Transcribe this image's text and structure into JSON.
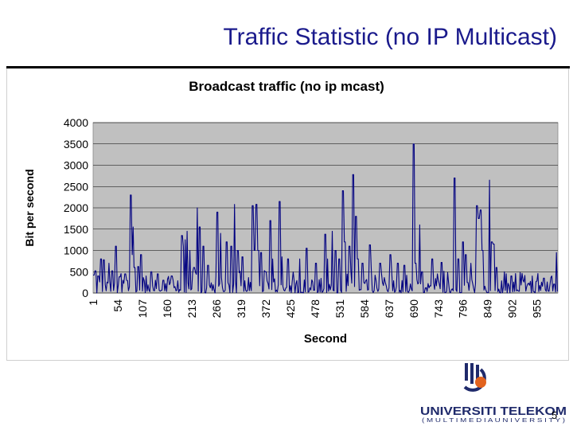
{
  "slide": {
    "title": "Traffic Statistic (no IP Multicast)",
    "page_number": "5"
  },
  "logo": {
    "name": "UNIVERSITI TELEKOM",
    "subtitle": "( M U L T I M E D I A   U N I V E R S I T Y )",
    "colors": {
      "navy": "#1f2a6b",
      "orange": "#e2631e"
    }
  },
  "chart_data": {
    "type": "line",
    "title": "Broadcast traffic (no ip mcast)",
    "xlabel": "Second",
    "ylabel": "Bit per second",
    "ylim": [
      0,
      4000
    ],
    "yticks": [
      0,
      500,
      1000,
      1500,
      2000,
      2500,
      3000,
      3500,
      4000
    ],
    "xlim": [
      1,
      1000
    ],
    "xticks": [
      1,
      54,
      107,
      160,
      213,
      266,
      319,
      372,
      425,
      478,
      531,
      584,
      637,
      690,
      743,
      796,
      849,
      902,
      955
    ],
    "grid": true,
    "plot_background": "#c0c0c0",
    "series": [
      {
        "color": "#000080",
        "peaks": [
          [
            2,
            420
          ],
          [
            6,
            520
          ],
          [
            12,
            400
          ],
          [
            18,
            800
          ],
          [
            24,
            780
          ],
          [
            35,
            700
          ],
          [
            42,
            520
          ],
          [
            50,
            1100
          ],
          [
            58,
            380
          ],
          [
            70,
            450
          ],
          [
            82,
            2300
          ],
          [
            85,
            900
          ],
          [
            87,
            1550
          ],
          [
            90,
            600
          ],
          [
            98,
            620
          ],
          [
            104,
            900
          ],
          [
            115,
            400
          ],
          [
            126,
            500
          ],
          [
            140,
            450
          ],
          [
            152,
            300
          ],
          [
            170,
            400
          ],
          [
            192,
            1350
          ],
          [
            195,
            1100
          ],
          [
            199,
            1250
          ],
          [
            203,
            1450
          ],
          [
            209,
            1000
          ],
          [
            218,
            600
          ],
          [
            225,
            2000
          ],
          [
            230,
            1550
          ],
          [
            238,
            1100
          ],
          [
            248,
            650
          ],
          [
            268,
            1900
          ],
          [
            275,
            1400
          ],
          [
            288,
            1200
          ],
          [
            298,
            1100
          ],
          [
            305,
            2080
          ],
          [
            312,
            1000
          ],
          [
            322,
            850
          ],
          [
            344,
            2050
          ],
          [
            348,
            1000
          ],
          [
            352,
            2080
          ],
          [
            356,
            1000
          ],
          [
            362,
            950
          ],
          [
            372,
            500
          ],
          [
            382,
            1700
          ],
          [
            387,
            800
          ],
          [
            402,
            2150
          ],
          [
            407,
            850
          ],
          [
            420,
            800
          ],
          [
            445,
            800
          ],
          [
            460,
            1050
          ],
          [
            480,
            700
          ],
          [
            500,
            1380
          ],
          [
            505,
            800
          ],
          [
            515,
            1450
          ],
          [
            522,
            1000
          ],
          [
            530,
            800
          ],
          [
            538,
            2400
          ],
          [
            542,
            1200
          ],
          [
            552,
            1100
          ],
          [
            560,
            2780
          ],
          [
            566,
            1800
          ],
          [
            570,
            800
          ],
          [
            580,
            700
          ],
          [
            596,
            1130
          ],
          [
            618,
            700
          ],
          [
            640,
            900
          ],
          [
            656,
            700
          ],
          [
            670,
            650
          ],
          [
            690,
            3500
          ],
          [
            694,
            700
          ],
          [
            703,
            1600
          ],
          [
            708,
            500
          ],
          [
            730,
            800
          ],
          [
            750,
            720
          ],
          [
            778,
            2700
          ],
          [
            786,
            800
          ],
          [
            796,
            1200
          ],
          [
            802,
            900
          ],
          [
            813,
            700
          ],
          [
            826,
            2050
          ],
          [
            830,
            1750
          ],
          [
            834,
            1950
          ],
          [
            838,
            1000
          ],
          [
            853,
            2650
          ],
          [
            858,
            1200
          ],
          [
            862,
            1150
          ],
          [
            868,
            600
          ],
          [
            885,
            500
          ],
          [
            900,
            400
          ],
          [
            925,
            300
          ],
          [
            945,
            400
          ],
          [
            970,
            350
          ],
          [
            987,
            400
          ],
          [
            997,
            950
          ]
        ]
      }
    ]
  }
}
